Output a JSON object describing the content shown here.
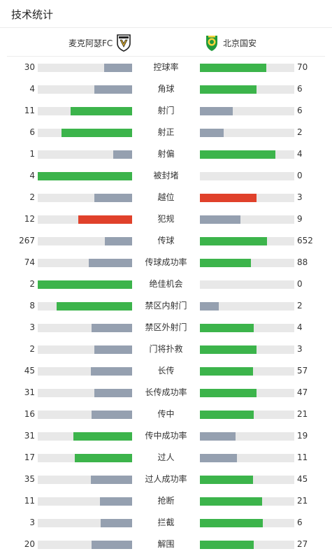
{
  "header": {
    "title": "技术统计"
  },
  "teams": {
    "home": {
      "name": "麦克阿瑟FC",
      "badge_icon": "macarthur-fc-crest-icon"
    },
    "away": {
      "name": "北京国安",
      "badge_icon": "beijing-guoan-crest-icon"
    }
  },
  "colors": {
    "win": "#3cb44b",
    "lose": "#95a0b0",
    "card": "#e0412b",
    "track": "#e8e8e8"
  },
  "stats": [
    {
      "label": "控球率",
      "home": "30",
      "away": "70",
      "home_fill": 0.3,
      "away_fill": 0.7,
      "home_color": "lose",
      "away_color": "win"
    },
    {
      "label": "角球",
      "home": "4",
      "away": "6",
      "home_fill": 0.4,
      "away_fill": 0.6,
      "home_color": "lose",
      "away_color": "win"
    },
    {
      "label": "射门",
      "home": "11",
      "away": "6",
      "home_fill": 0.65,
      "away_fill": 0.35,
      "home_color": "win",
      "away_color": "lose"
    },
    {
      "label": "射正",
      "home": "6",
      "away": "2",
      "home_fill": 0.75,
      "away_fill": 0.25,
      "home_color": "win",
      "away_color": "lose"
    },
    {
      "label": "射偏",
      "home": "1",
      "away": "4",
      "home_fill": 0.2,
      "away_fill": 0.8,
      "home_color": "lose",
      "away_color": "win"
    },
    {
      "label": "被封堵",
      "home": "4",
      "away": "0",
      "home_fill": 1.0,
      "away_fill": 0.0,
      "home_color": "win",
      "away_color": "lose"
    },
    {
      "label": "越位",
      "home": "2",
      "away": "3",
      "home_fill": 0.4,
      "away_fill": 0.6,
      "home_color": "lose",
      "away_color": "card"
    },
    {
      "label": "犯规",
      "home": "12",
      "away": "9",
      "home_fill": 0.57,
      "away_fill": 0.43,
      "home_color": "card",
      "away_color": "lose"
    },
    {
      "label": "传球",
      "home": "267",
      "away": "652",
      "home_fill": 0.29,
      "away_fill": 0.71,
      "home_color": "lose",
      "away_color": "win"
    },
    {
      "label": "传球成功率",
      "home": "74",
      "away": "88",
      "home_fill": 0.46,
      "away_fill": 0.54,
      "home_color": "lose",
      "away_color": "win"
    },
    {
      "label": "绝佳机会",
      "home": "2",
      "away": "0",
      "home_fill": 1.0,
      "away_fill": 0.0,
      "home_color": "win",
      "away_color": "lose"
    },
    {
      "label": "禁区内射门",
      "home": "8",
      "away": "2",
      "home_fill": 0.8,
      "away_fill": 0.2,
      "home_color": "win",
      "away_color": "lose"
    },
    {
      "label": "禁区外射门",
      "home": "3",
      "away": "4",
      "home_fill": 0.43,
      "away_fill": 0.57,
      "home_color": "lose",
      "away_color": "win"
    },
    {
      "label": "门将扑救",
      "home": "2",
      "away": "3",
      "home_fill": 0.4,
      "away_fill": 0.6,
      "home_color": "lose",
      "away_color": "win"
    },
    {
      "label": "长传",
      "home": "45",
      "away": "57",
      "home_fill": 0.44,
      "away_fill": 0.56,
      "home_color": "lose",
      "away_color": "win"
    },
    {
      "label": "长传成功率",
      "home": "31",
      "away": "47",
      "home_fill": 0.4,
      "away_fill": 0.6,
      "home_color": "lose",
      "away_color": "win"
    },
    {
      "label": "传中",
      "home": "16",
      "away": "21",
      "home_fill": 0.43,
      "away_fill": 0.57,
      "home_color": "lose",
      "away_color": "win"
    },
    {
      "label": "传中成功率",
      "home": "31",
      "away": "19",
      "home_fill": 0.62,
      "away_fill": 0.38,
      "home_color": "win",
      "away_color": "lose"
    },
    {
      "label": "过人",
      "home": "17",
      "away": "11",
      "home_fill": 0.61,
      "away_fill": 0.39,
      "home_color": "win",
      "away_color": "lose"
    },
    {
      "label": "过人成功率",
      "home": "35",
      "away": "45",
      "home_fill": 0.44,
      "away_fill": 0.56,
      "home_color": "lose",
      "away_color": "win"
    },
    {
      "label": "抢断",
      "home": "11",
      "away": "21",
      "home_fill": 0.34,
      "away_fill": 0.66,
      "home_color": "lose",
      "away_color": "win"
    },
    {
      "label": "拦截",
      "home": "3",
      "away": "6",
      "home_fill": 0.33,
      "away_fill": 0.67,
      "home_color": "lose",
      "away_color": "win"
    },
    {
      "label": "解围",
      "home": "20",
      "away": "27",
      "home_fill": 0.43,
      "away_fill": 0.57,
      "home_color": "lose",
      "away_color": "win"
    }
  ]
}
